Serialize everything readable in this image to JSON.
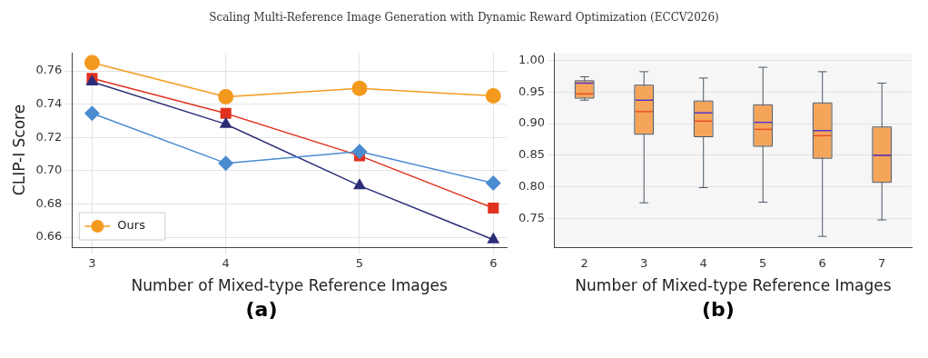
{
  "chart_data": [
    {
      "type": "line",
      "title": "(a)",
      "annotations": [
        "Scaling Multi-Reference Image Generation with Dynamic Reward Optimization (ECCV2026)"
      ],
      "xlabel": "Number of Mixed-type Reference Images",
      "ylabel": "CLIP-I Score",
      "x": [
        3,
        4,
        5,
        6
      ],
      "xlim": [
        2.85,
        6.1
      ],
      "xticks": [
        3,
        4,
        5,
        6
      ],
      "ylim": [
        0.654,
        0.771
      ],
      "yticks": [
        0.66,
        0.68,
        {
          "value": 0.7,
          "label": "0.70"
        },
        0.72,
        0.74,
        0.76
      ],
      "grid": true,
      "legend": "bottom left",
      "series": [
        {
          "name": "Ours",
          "color": "#f39a1e",
          "marker": "circle",
          "values": [
            0.765,
            0.7445,
            0.7495,
            0.745
          ]
        },
        {
          "color": "#e0321f",
          "marker": "square",
          "values": [
            0.7555,
            0.7345,
            0.709,
            0.6775
          ]
        },
        {
          "color": "#2b2d78",
          "marker": "triangle",
          "values": [
            0.7535,
            0.728,
            0.691,
            0.6585
          ]
        },
        {
          "color": "#4a8bd0",
          "marker": "diamond",
          "values": [
            0.7345,
            0.7045,
            0.7115,
            0.6925
          ]
        }
      ]
    },
    {
      "type": "box",
      "title": "(b)",
      "xlabel": "Number of Mixed-type Reference Images",
      "categories": [
        "2",
        "3",
        "4",
        "5",
        "6",
        "7"
      ],
      "ylim": [
        0.705,
        1.012
      ],
      "yticks": [
        0.75,
        {
          "value": 0.8,
          "label": "0.80"
        },
        0.85,
        {
          "value": 0.9,
          "label": "0.90"
        },
        0.95,
        {
          "value": 1,
          "label": "1.00"
        }
      ],
      "grid": "y",
      "series": [
        {
          "color": "#f5a55a",
          "boxes": [
            {
              "low": 0.937,
              "q1": 0.941,
              "median": 0.964,
              "mean": 0.947,
              "q3": 0.967,
              "high": 0.974
            },
            {
              "low": 0.775,
              "q1": 0.884,
              "median": 0.937,
              "mean": 0.919,
              "q3": 0.96,
              "high": 0.982
            },
            {
              "low": 0.799,
              "q1": 0.88,
              "median": 0.917,
              "mean": 0.904,
              "q3": 0.935,
              "high": 0.972
            },
            {
              "low": 0.776,
              "q1": 0.865,
              "median": 0.902,
              "mean": 0.891,
              "q3": 0.929,
              "high": 0.989
            },
            {
              "low": 0.722,
              "q1": 0.846,
              "median": 0.889,
              "mean": 0.881,
              "q3": 0.932,
              "high": 0.982
            },
            {
              "low": 0.748,
              "q1": 0.808,
              "median": 0.85,
              "mean": 0.85,
              "q3": 0.894,
              "high": 0.964
            }
          ]
        }
      ]
    }
  ]
}
